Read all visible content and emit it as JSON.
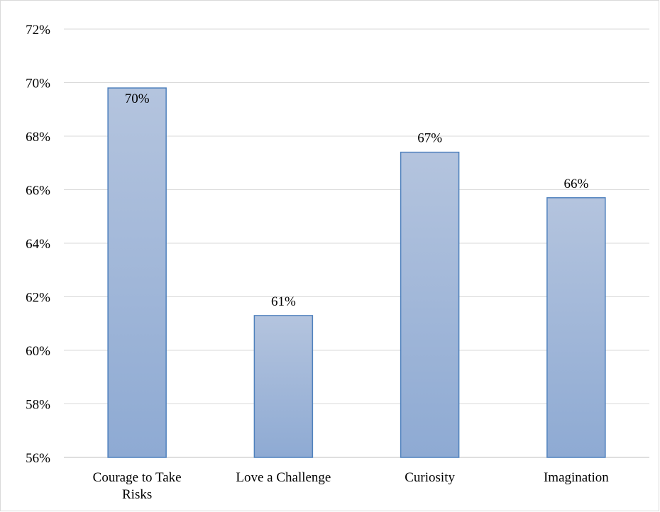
{
  "chart_data": {
    "type": "bar",
    "categories": [
      [
        "Courage to Take",
        "Risks"
      ],
      [
        "Love a Challenge"
      ],
      [
        "Curiosity"
      ],
      [
        "Imagination"
      ]
    ],
    "values": [
      69.8,
      61.3,
      67.4,
      65.7
    ],
    "data_labels": [
      "70%",
      "61%",
      "67%",
      "66%"
    ],
    "yticks": [
      "56%",
      "58%",
      "60%",
      "62%",
      "64%",
      "66%",
      "68%",
      "70%",
      "72%"
    ],
    "ylim": [
      56,
      72
    ],
    "grid": true,
    "legend": "none",
    "colors": {
      "bar_top": "#b4c4de",
      "bar_bottom": "#8eaad3",
      "bar_stroke": "#4f81bd",
      "grid": "#d9d9d9",
      "axis": "#bfbfbf"
    }
  }
}
